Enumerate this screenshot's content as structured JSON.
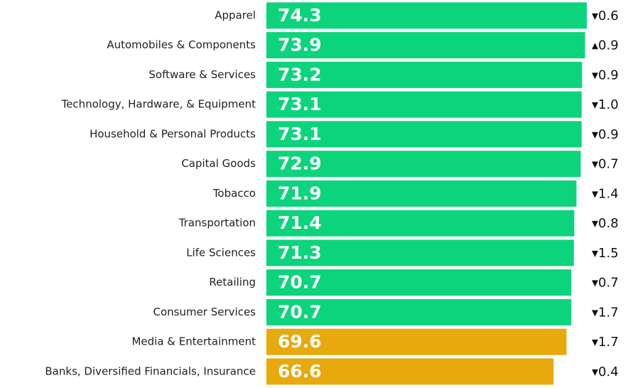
{
  "chart_data": {
    "type": "bar",
    "orientation": "horizontal",
    "categories": [
      "Apparel",
      "Automobiles & Components",
      "Software & Services",
      "Technology, Hardware, & Equipment",
      "Household & Personal Products",
      "Capital Goods",
      "Tobacco",
      "Transportation",
      "Life Sciences",
      "Retailing",
      "Consumer Services",
      "Media & Entertainment",
      "Banks, Diversified Financials, Insurance"
    ],
    "values": [
      74.3,
      73.9,
      73.2,
      73.1,
      73.1,
      72.9,
      71.9,
      71.4,
      71.3,
      70.7,
      70.7,
      69.6,
      66.6
    ],
    "colors": [
      "#0cd47c",
      "#0cd47c",
      "#0cd47c",
      "#0cd47c",
      "#0cd47c",
      "#0cd47c",
      "#0cd47c",
      "#0cd47c",
      "#0cd47c",
      "#0cd47c",
      "#0cd47c",
      "#e8a90c",
      "#e8a90c"
    ],
    "changes": [
      -0.6,
      0.9,
      -0.9,
      -1.0,
      -0.9,
      -0.7,
      -1.4,
      -0.8,
      -1.5,
      -0.7,
      -1.7,
      -1.7,
      -0.4
    ],
    "change_labels": [
      "▾0.6",
      "▴0.9",
      "▾0.9",
      "▾1.0",
      "▾0.9",
      "▾0.7",
      "▾1.4",
      "▾0.8",
      "▾1.5",
      "▾0.7",
      "▾1.7",
      "▾1.7",
      "▾0.4"
    ],
    "xlim": [
      0,
      74.3
    ]
  }
}
